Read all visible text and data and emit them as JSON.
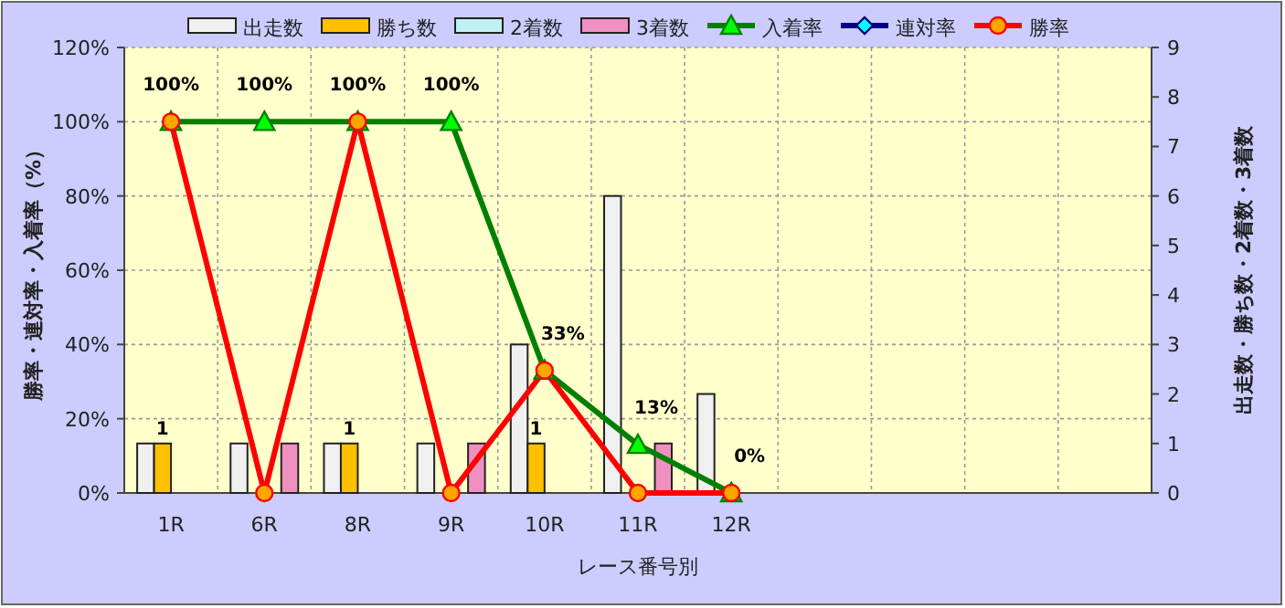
{
  "chart_data": {
    "type": "bar",
    "xlabel": "レース番号別",
    "ylabel": "勝率・連対率・入着率（%）",
    "y2label": "出走数・勝ち数・2着数・3着数",
    "categories": [
      "1R",
      "6R",
      "8R",
      "9R",
      "10R",
      "11R",
      "12R",
      null,
      null,
      null,
      null
    ],
    "ylim": [
      0,
      120
    ],
    "yticks": [
      {
        "value": 0,
        "label": "0%"
      },
      {
        "value": 20,
        "label": "20%"
      },
      {
        "value": 40,
        "label": "40%"
      },
      {
        "value": 60,
        "label": "60%"
      },
      {
        "value": 80,
        "label": "80%"
      },
      {
        "value": 100,
        "label": "100%"
      },
      {
        "value": 120,
        "label": "120%"
      }
    ],
    "y2lim": [
      0,
      9
    ],
    "y2ticks": [
      0,
      1,
      2,
      3,
      4,
      5,
      6,
      7,
      8,
      9
    ],
    "grid": true,
    "legend": "top",
    "series": [
      {
        "name": "出走数",
        "type": "bar",
        "axis": "y2",
        "color": "#f0f0f0",
        "values": [
          1,
          1,
          1,
          1,
          3,
          6,
          2,
          null,
          null,
          null,
          null
        ]
      },
      {
        "name": "勝ち数",
        "type": "bar",
        "axis": "y2",
        "color": "#ffc000",
        "values": [
          1,
          0,
          1,
          0,
          1,
          0,
          0,
          null,
          null,
          null,
          null
        ],
        "value_labels": [
          "1",
          null,
          "1",
          null,
          "1",
          null,
          null,
          null,
          null,
          null,
          null
        ]
      },
      {
        "name": "2着数",
        "type": "bar",
        "axis": "y2",
        "color": "#c0f0f0",
        "values": [
          0,
          0,
          0,
          0,
          0,
          0,
          0,
          null,
          null,
          null,
          null
        ]
      },
      {
        "name": "3着数",
        "type": "bar",
        "axis": "y2",
        "color": "#f090c0",
        "values": [
          0,
          1,
          0,
          1,
          0,
          1,
          0,
          null,
          null,
          null,
          null
        ]
      },
      {
        "name": "入着率",
        "type": "line",
        "color": "#008000",
        "marker": "triangle",
        "values": [
          100,
          100,
          100,
          100,
          33,
          13,
          0,
          null,
          null,
          null,
          null
        ],
        "value_labels": [
          "100%",
          "100%",
          "100%",
          "100%",
          "33%",
          "13%",
          "0%",
          null,
          null,
          null,
          null
        ]
      },
      {
        "name": "連対率",
        "type": "line",
        "color": "#000080",
        "marker": "diamond",
        "values": [
          null,
          null,
          null,
          null,
          null,
          null,
          null,
          null,
          null,
          null,
          null
        ]
      },
      {
        "name": "勝率",
        "type": "line",
        "color": "#ff0000",
        "marker": "circle",
        "values": [
          100,
          0,
          100,
          0,
          33,
          0,
          0,
          null,
          null,
          null,
          null
        ]
      }
    ]
  }
}
